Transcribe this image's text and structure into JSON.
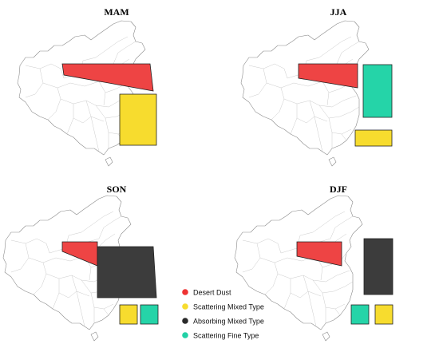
{
  "panels": [
    {
      "title": "MAM",
      "regions": [
        "desert_dust",
        "scattering_mixed"
      ]
    },
    {
      "title": "JJA",
      "regions": [
        "desert_dust",
        "scattering_fine",
        "scattering_mixed"
      ]
    },
    {
      "title": "SON",
      "regions": [
        "desert_dust",
        "absorbing_mixed",
        "scattering_mixed",
        "scattering_fine"
      ]
    },
    {
      "title": "DJF",
      "regions": [
        "desert_dust",
        "absorbing_mixed",
        "scattering_fine",
        "scattering_mixed"
      ]
    }
  ],
  "legend": [
    {
      "key": "desert_dust",
      "label": "Desert Dust",
      "color": "#ee3333"
    },
    {
      "key": "scattering_mixed",
      "label": "Scattering Mixed Type",
      "color": "#f7dc2e"
    },
    {
      "key": "absorbing_mixed",
      "label": "Absorbing Mixed Type",
      "color": "#2a2a2a"
    },
    {
      "key": "scattering_fine",
      "label": "Scattering Fine Type",
      "color": "#22d1a6"
    }
  ],
  "region_colors": {
    "desert_dust": "#ee4444",
    "scattering_mixed": "#f7dc2e",
    "absorbing_mixed": "#3c3c3c",
    "scattering_fine": "#25d4a8"
  }
}
